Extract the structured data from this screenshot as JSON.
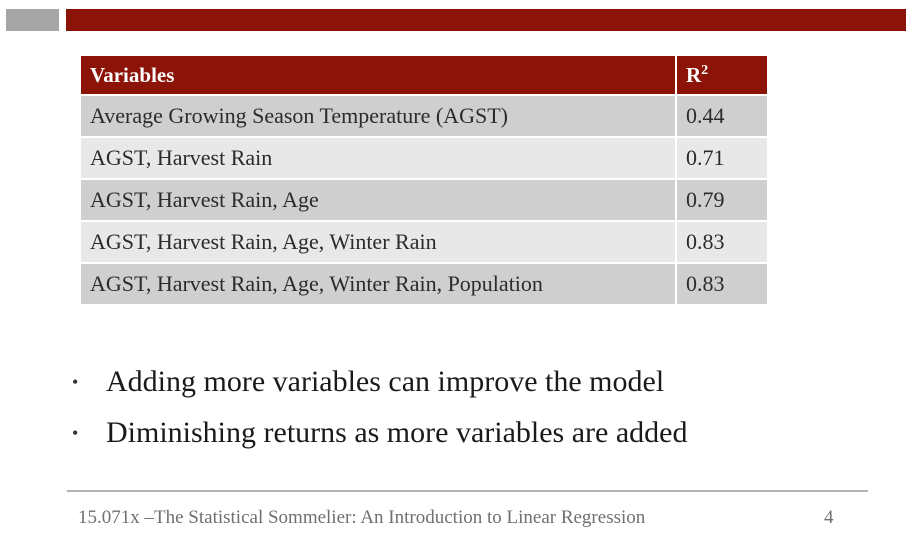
{
  "table": {
    "headers": {
      "variables": "Variables",
      "r_base": "R",
      "r_sup": "2"
    },
    "rows": [
      {
        "variables": "Average Growing Season Temperature (AGST)",
        "r2": "0.44"
      },
      {
        "variables": "AGST,  Harvest Rain",
        "r2": "0.71"
      },
      {
        "variables": "AGST,  Harvest Rain,  Age",
        "r2": "0.79"
      },
      {
        "variables": "AGST,  Harvest Rain,  Age,  Winter Rain",
        "r2": "0.83"
      },
      {
        "variables": "AGST,  Harvest Rain,  Age,  Winter Rain, Population",
        "r2": "0.83"
      }
    ]
  },
  "bullets": [
    {
      "marker": "•",
      "text": "Adding more variables can improve the model"
    },
    {
      "marker": "•",
      "text": "Diminishing returns as more variables are added"
    }
  ],
  "footer": {
    "text": "15.071x –The Statistical Sommelier: An Introduction to Linear Regression",
    "page_number": "4"
  },
  "colors": {
    "accent_red": "#8b1307",
    "accent_gray": "#a6a6a6",
    "row_dark": "#cfcfcf",
    "row_light": "#e8e8e8"
  }
}
